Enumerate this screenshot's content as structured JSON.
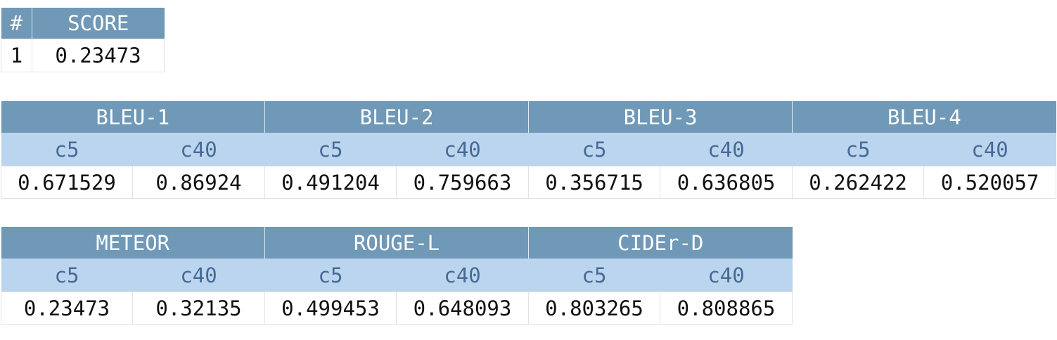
{
  "score_table": {
    "headers": [
      "#",
      "SCORE"
    ],
    "rows": [
      [
        "1",
        "0.23473"
      ]
    ]
  },
  "bleu_table": {
    "groups": [
      {
        "name": "BLEU-1",
        "sub": [
          "c5",
          "c40"
        ],
        "values": [
          "0.671529",
          "0.86924"
        ]
      },
      {
        "name": "BLEU-2",
        "sub": [
          "c5",
          "c40"
        ],
        "values": [
          "0.491204",
          "0.759663"
        ]
      },
      {
        "name": "BLEU-3",
        "sub": [
          "c5",
          "c40"
        ],
        "values": [
          "0.356715",
          "0.636805"
        ]
      },
      {
        "name": "BLEU-4",
        "sub": [
          "c5",
          "c40"
        ],
        "values": [
          "0.262422",
          "0.520057"
        ]
      }
    ]
  },
  "other_table": {
    "groups": [
      {
        "name": "METEOR",
        "sub": [
          "c5",
          "c40"
        ],
        "values": [
          "0.23473",
          "0.32135"
        ]
      },
      {
        "name": "ROUGE-L",
        "sub": [
          "c5",
          "c40"
        ],
        "values": [
          "0.499453",
          "0.648093"
        ]
      },
      {
        "name": "CIDEr-D",
        "sub": [
          "c5",
          "c40"
        ],
        "values": [
          "0.803265",
          "0.808865"
        ]
      }
    ]
  }
}
